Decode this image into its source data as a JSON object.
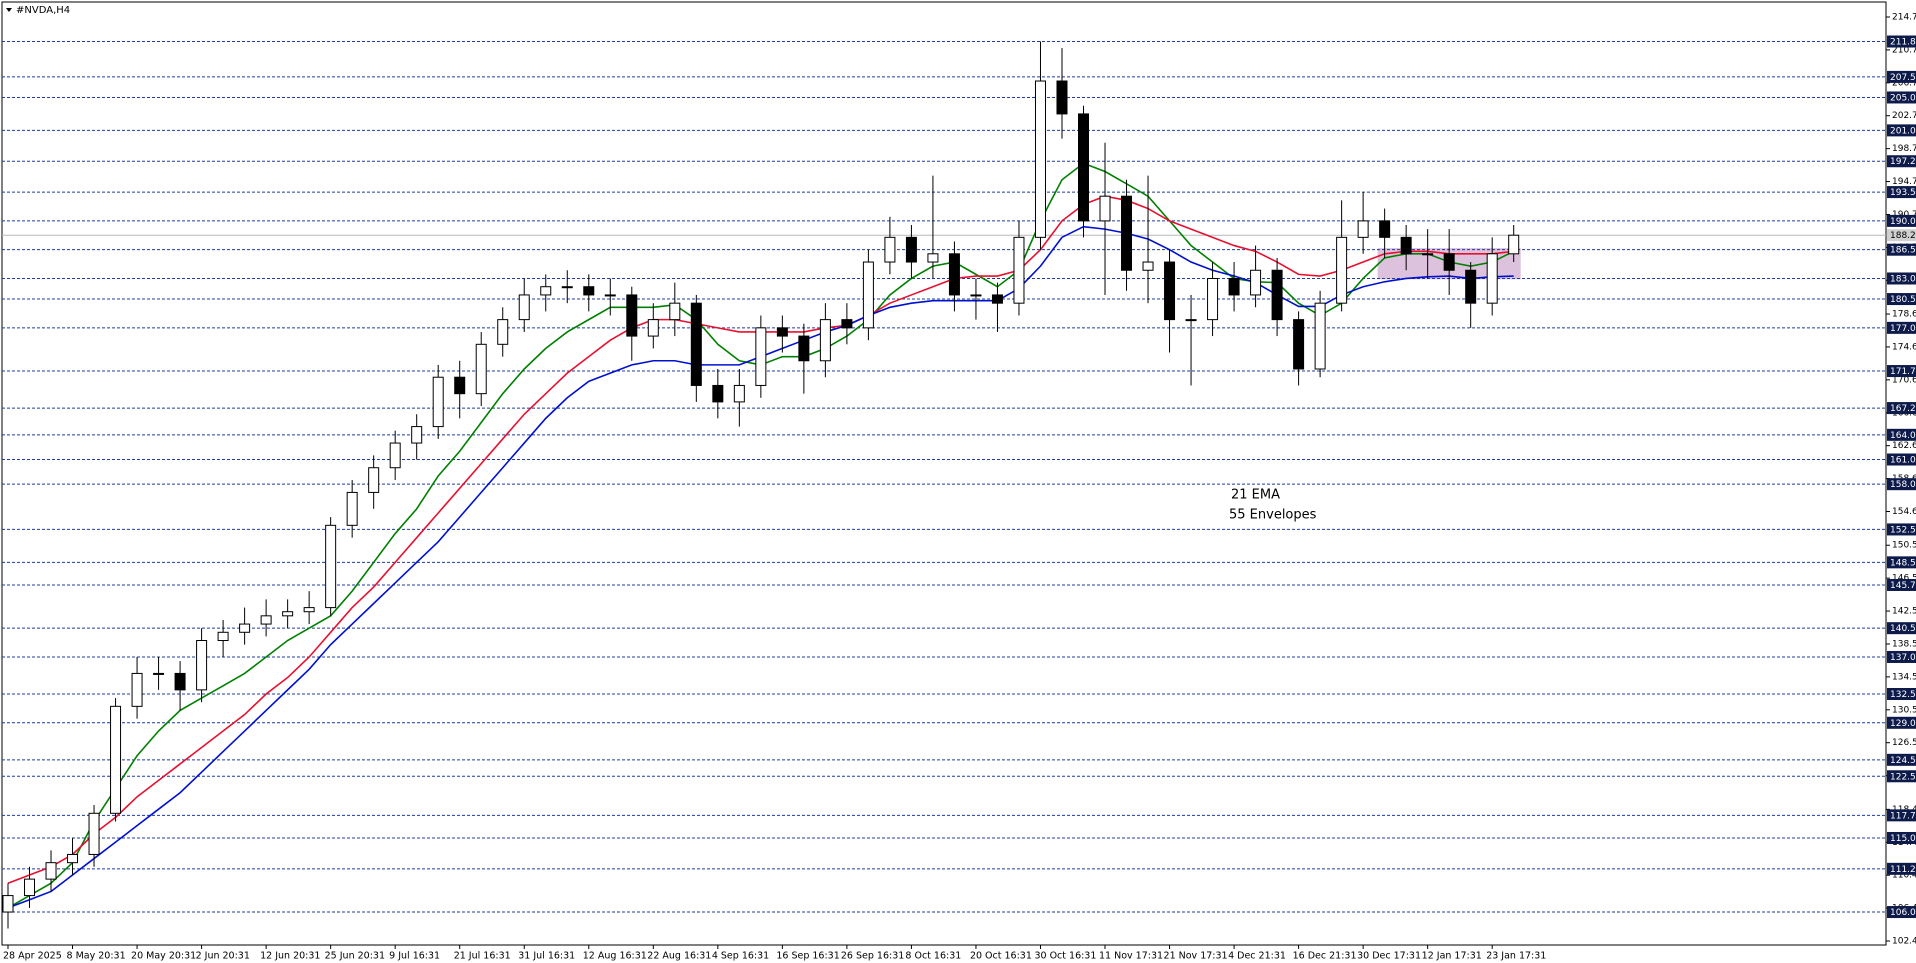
{
  "chart_data": {
    "type": "candlestick",
    "title": "#NVDA,H4",
    "categories": [
      "28 Apr 2025",
      null,
      null,
      "8 May 20:31",
      null,
      null,
      "20 May 20:31",
      null,
      null,
      "2 Jun 20:31",
      null,
      null,
      "12 Jun 20:31",
      null,
      null,
      "25 Jun 20:31",
      null,
      null,
      "9 Jul 16:31",
      null,
      null,
      "21 Jul 16:31",
      null,
      null,
      "31 Jul 16:31",
      null,
      null,
      "12 Aug 16:31",
      null,
      null,
      "22 Aug 16:31",
      null,
      null,
      "4 Sep 16:31",
      null,
      null,
      "16 Sep 16:31",
      null,
      null,
      "26 Sep 16:31",
      null,
      null,
      "8 Oct 16:31",
      null,
      null,
      "20 Oct 16:31",
      null,
      null,
      "30 Oct 16:31",
      null,
      null,
      "11 Nov 17:31",
      null,
      null,
      "21 Nov 17:31",
      null,
      null,
      "4 Dec 21:31",
      null,
      null,
      "16 Dec 21:31",
      null,
      null,
      "30 Dec 17:31",
      null,
      null,
      "12 Jan 17:31",
      null,
      null,
      "23 Jan 17:31",
      null
    ],
    "open": [
      106,
      108,
      110,
      112,
      113,
      118,
      131,
      135,
      135,
      133,
      139,
      140,
      141,
      142,
      142.5,
      143,
      153,
      157,
      160,
      163,
      165,
      171,
      169,
      175,
      178,
      181,
      182,
      182,
      181,
      181,
      176,
      178,
      180,
      170,
      168,
      170,
      177,
      176,
      173,
      178,
      177,
      185,
      188,
      185,
      186,
      181,
      181,
      180,
      188,
      207,
      203,
      190,
      193,
      184,
      185,
      178,
      178,
      183,
      181,
      184,
      178,
      172,
      180,
      188,
      190,
      188,
      186,
      186,
      184,
      180,
      186
    ],
    "high": [
      109.5,
      111.5,
      113.5,
      115,
      119,
      132,
      137,
      137,
      136.5,
      140.5,
      141.5,
      143,
      144,
      144,
      145,
      154,
      158.5,
      161.5,
      164.5,
      166.5,
      172.5,
      173,
      176.5,
      179.5,
      183,
      183.5,
      184,
      183.5,
      183,
      182,
      180,
      182.5,
      181,
      172,
      172,
      178.5,
      178.5,
      177.5,
      180,
      180,
      186.5,
      190.5,
      189.5,
      195.5,
      187.5,
      183,
      182.5,
      190,
      211.8,
      211,
      204,
      199.5,
      195,
      195.5,
      186.5,
      181,
      185,
      185,
      187,
      185.5,
      179,
      181.5,
      192.5,
      193.5,
      191.5,
      189.5,
      189,
      189,
      185,
      188,
      189.5
    ],
    "low": [
      104,
      106.5,
      108.5,
      110.5,
      111.5,
      117,
      129.5,
      133,
      130.5,
      131.5,
      137,
      138.5,
      139.5,
      140.5,
      141,
      142,
      151.5,
      155,
      158.5,
      161,
      163.5,
      166,
      167.5,
      173.5,
      176.5,
      179,
      180,
      179,
      178.5,
      173,
      174.5,
      176,
      168,
      166,
      165,
      168.5,
      174,
      169,
      171,
      175,
      175.5,
      183.5,
      183,
      183,
      179,
      178,
      176.5,
      178.5,
      186.5,
      200,
      188,
      181,
      181.5,
      180,
      174,
      170,
      176,
      179,
      179.5,
      176,
      170,
      171,
      179,
      186,
      185.5,
      184,
      183,
      181,
      177,
      178.5,
      185
    ],
    "close": [
      108,
      110,
      112,
      113,
      118,
      131,
      135,
      135,
      133,
      139,
      140,
      141,
      142,
      142.5,
      143,
      153,
      157,
      160,
      163,
      165,
      171,
      169,
      175,
      178,
      181,
      182,
      182,
      181,
      181,
      176,
      178,
      180,
      170,
      168,
      170,
      177,
      176,
      173,
      178,
      177,
      185,
      188,
      185,
      186,
      181,
      181,
      180,
      188,
      207,
      203,
      190,
      193,
      184,
      185,
      178,
      178,
      183,
      181,
      184,
      178,
      172,
      180,
      188,
      190,
      188,
      186,
      186,
      184,
      180,
      186,
      188.26
    ],
    "series": [
      {
        "name": "21 EMA",
        "color": "#008000",
        "values": [
          106.5,
          108,
          109.5,
          112,
          117,
          121,
          125,
          128,
          130.5,
          132,
          133.5,
          135,
          137,
          139,
          140.5,
          142,
          145,
          148.5,
          152,
          155,
          159,
          162,
          165.5,
          169,
          172,
          174.5,
          176.5,
          178,
          179.5,
          179.5,
          179.5,
          179.8,
          178,
          175,
          173,
          172.5,
          173.5,
          173.5,
          174.5,
          176,
          178,
          181,
          183,
          184.5,
          185,
          183.5,
          182,
          184,
          190,
          195,
          197,
          196,
          194.5,
          193,
          190,
          187,
          185,
          183,
          182.6,
          182.5,
          180,
          178.5,
          180,
          183,
          185.5,
          186,
          186,
          185,
          184.5,
          185,
          186.3
        ]
      },
      {
        "color": "#e8102e",
        "values": [
          109.5,
          110.5,
          111.5,
          113,
          115.5,
          117.5,
          120,
          122,
          124,
          126,
          128,
          130,
          132.5,
          134.5,
          137,
          140,
          143,
          145.5,
          148.5,
          151.5,
          154.5,
          157.5,
          160.5,
          163.5,
          166.5,
          169,
          171.5,
          173.5,
          175.5,
          177,
          178,
          178,
          177.5,
          177,
          176.5,
          176.5,
          176.5,
          176.5,
          177,
          177.3,
          178.5,
          180,
          181,
          182,
          183,
          183.3,
          183.3,
          184,
          186.5,
          190,
          192,
          193,
          192.5,
          191.5,
          190,
          189,
          188,
          187,
          186.3,
          185,
          183.5,
          183.3,
          184,
          185,
          186,
          186.3,
          186.3,
          186,
          186,
          186,
          186.3
        ]
      },
      {
        "name": "55 Envelopes",
        "color": "#0010d0",
        "values": [
          106.5,
          107.5,
          108.5,
          110.5,
          112.5,
          114.5,
          116.5,
          118.5,
          120.5,
          123,
          125.5,
          128,
          130.5,
          133,
          135.5,
          138.5,
          141,
          143.5,
          146,
          148.5,
          151,
          154,
          157,
          160,
          163,
          166,
          168.5,
          170.5,
          171.5,
          172.5,
          173,
          173,
          172.5,
          172.5,
          172.5,
          173.5,
          174.5,
          175.5,
          176.5,
          177.3,
          178.5,
          179.5,
          180,
          180.3,
          180.3,
          180.3,
          180.3,
          181.8,
          184.5,
          188,
          189.3,
          189,
          188.5,
          187.8,
          186.5,
          185,
          184,
          183.3,
          182.5,
          181,
          179.6,
          179.6,
          181,
          182,
          182.6,
          183,
          183.2,
          183.3,
          183,
          183.2,
          183.3
        ]
      }
    ],
    "ylim": [
      102.48,
      214.78
    ],
    "yticks": [
      214.78,
      210.78,
      206.78,
      202.78,
      198.78,
      194.78,
      190.78,
      186.78,
      182.78,
      178.68,
      174.68,
      170.68,
      166.68,
      162.68,
      158.68,
      154.68,
      150.58,
      146.58,
      142.58,
      138.58,
      134.58,
      130.58,
      126.58,
      122.58,
      118.48,
      114.48,
      110.48,
      106.48,
      102.48
    ],
    "levels": [
      {
        "value": 211.8,
        "label": "211.80"
      },
      {
        "value": 207.5,
        "label": "207.50"
      },
      {
        "value": 205,
        "label": "205.00"
      },
      {
        "value": 201,
        "label": "201.00"
      },
      {
        "value": 197.25,
        "label": "197.25"
      },
      {
        "value": 193.5,
        "label": "193.50"
      },
      {
        "value": 190,
        "label": "190.00"
      },
      {
        "value": 186.5,
        "label": "186.50"
      },
      {
        "value": 183,
        "label": "183.00"
      },
      {
        "value": 180.5,
        "label": "180.50"
      },
      {
        "value": 177,
        "label": "177.00"
      },
      {
        "value": 171.75,
        "label": "171.75"
      },
      {
        "value": 167.25,
        "label": "167.25"
      },
      {
        "value": 164,
        "label": "164.00"
      },
      {
        "value": 161,
        "label": "161.00"
      },
      {
        "value": 158,
        "label": "158.00"
      },
      {
        "value": 152.5,
        "label": "152.50"
      },
      {
        "value": 148.5,
        "label": "148.50"
      },
      {
        "value": 145.75,
        "label": "145.75"
      },
      {
        "value": 140.5,
        "label": "140.50"
      },
      {
        "value": 137,
        "label": "137.00"
      },
      {
        "value": 132.5,
        "label": "132.50"
      },
      {
        "value": 129,
        "label": "129.00"
      },
      {
        "value": 124.5,
        "label": "124.50"
      },
      {
        "value": 122.5,
        "label": "122.50"
      },
      {
        "value": 117.75,
        "label": "117.75"
      },
      {
        "value": 115,
        "label": "115.00"
      },
      {
        "value": 111.25,
        "label": "111.25"
      },
      {
        "value": 106,
        "label": "106.00"
      }
    ],
    "last_price": 188.26,
    "zone": {
      "ylim": [
        182.9,
        186.7
      ],
      "start": 64,
      "end": 70
    }
  }
}
